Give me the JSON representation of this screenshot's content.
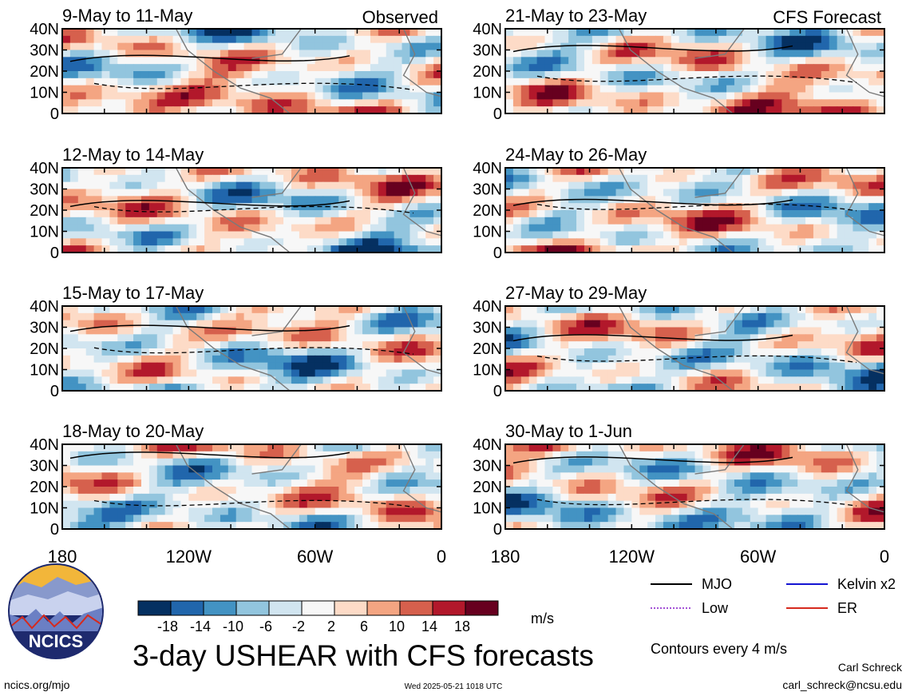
{
  "title": "3-day USHEAR with CFS forecasts",
  "logo": {
    "text": "NCICS"
  },
  "footer": {
    "website": "ncics.org/mjo",
    "timestamp": "Wed 2025-05-21 1018 UTC",
    "author": "Carl Schreck",
    "email": "carl_schreck@ncsu.edu"
  },
  "contour_note": "Contours every 4 m/s",
  "legend": [
    {
      "label": "MJO",
      "color": "#000000",
      "style": "solid"
    },
    {
      "label": "Kelvin x2",
      "color": "#1414d2",
      "style": "solid"
    },
    {
      "label": "Low",
      "color": "#a352d6",
      "style": "dotted"
    },
    {
      "label": "ER",
      "color": "#d62a1e",
      "style": "solid"
    }
  ],
  "colorbar": {
    "unit": "m/s",
    "tick_labels": [
      "-18",
      "-14",
      "-10",
      "-6",
      "-2",
      "2",
      "6",
      "10",
      "14",
      "18"
    ],
    "colors": [
      "#053061",
      "#2166ac",
      "#4393c3",
      "#92c5de",
      "#d1e5f0",
      "#f7f7f7",
      "#fddbc7",
      "#f4a582",
      "#d6604d",
      "#b2182b",
      "#67001f"
    ]
  },
  "chart_data": {
    "type": "heatmap",
    "variable": "USHEAR",
    "unit": "m/s",
    "x_ticks": [
      "180",
      "120W",
      "60W",
      "0"
    ],
    "x_range_deg_east": [
      180,
      360
    ],
    "y_ticks": [
      "0",
      "10N",
      "20N",
      "30N",
      "40N"
    ],
    "y_range_deg_north": [
      0,
      40
    ],
    "contour_interval": 4,
    "columns": [
      {
        "label": "Observed",
        "panels": [
          "9-May to 11-May",
          "12-May to 14-May",
          "15-May to 17-May",
          "18-May to 20-May"
        ]
      },
      {
        "label": "CFS Forecast",
        "panels": [
          "21-May to 23-May",
          "24-May to 26-May",
          "27-May to 29-May",
          "30-May to 1-Jun"
        ]
      }
    ]
  }
}
